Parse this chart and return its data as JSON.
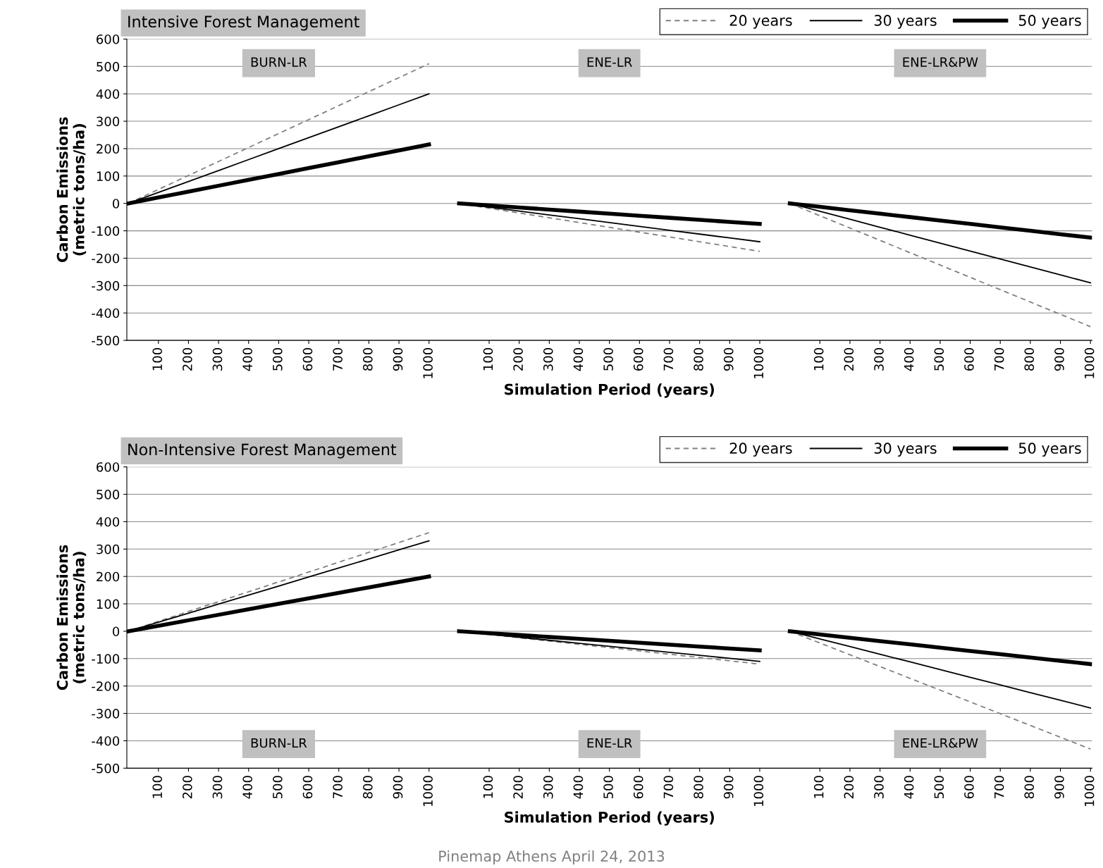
{
  "chart_data": [
    {
      "type": "line",
      "title": "Intensive Forest Management",
      "xlabel": "Simulation Period (years)",
      "ylabel": "Carbon Emissions\n(metric tons/ha)",
      "categories": [
        null,
        "100",
        "200",
        "300",
        "400",
        "500",
        "600",
        "700",
        "800",
        "900",
        "1000",
        null,
        "100",
        "200",
        "300",
        "400",
        "500",
        "600",
        "700",
        "800",
        "900",
        "1000",
        null,
        "100",
        "200",
        "300",
        "400",
        "500",
        "600",
        "700",
        "800",
        "900",
        "1000"
      ],
      "series": [
        {
          "name": "20 years",
          "color": "#808080",
          "line_style": "dashed",
          "values": [
            0,
            51,
            102,
            153,
            204,
            255,
            306,
            357,
            408,
            459,
            510,
            0,
            -17.5,
            -35,
            -52.5,
            -70,
            -87.5,
            -105,
            -122.5,
            -140,
            -157.5,
            -175,
            0,
            -45,
            -90,
            -135,
            -180,
            -225,
            -270,
            -315,
            -360,
            -405,
            -450
          ]
        },
        {
          "name": "30 years",
          "color": "#000000",
          "line_style": "solid",
          "values": [
            0,
            40,
            80,
            120,
            160,
            200,
            240,
            280,
            320,
            360,
            400,
            0,
            -14,
            -28,
            -42,
            -56,
            -70,
            -84,
            -98,
            -112,
            -126,
            -140,
            0,
            -29,
            -58,
            -87,
            -116,
            -145,
            -174,
            -203,
            -232,
            -261,
            -290
          ]
        },
        {
          "name": "50 years",
          "color": "#000000",
          "line_style": "solid",
          "values": [
            0,
            21.5,
            43,
            64.5,
            86,
            107.5,
            129,
            150.5,
            172,
            193.5,
            215,
            0,
            -7.5,
            -15,
            -22.5,
            -30,
            -37.5,
            -45,
            -52.5,
            -60,
            -67.5,
            -75,
            0,
            -12.5,
            -25,
            -37.5,
            -50,
            -62.5,
            -75,
            -87.5,
            -100,
            -112.5,
            -125
          ]
        }
      ],
      "ylim": [
        -500,
        600
      ],
      "yticks": [
        -500,
        -400,
        -300,
        -200,
        -100,
        0,
        100,
        200,
        300,
        400,
        500,
        600
      ],
      "grid": "y",
      "legend": "top right",
      "marker": "none",
      "annotations": [
        "BURN-LR",
        "ENE-LR",
        "ENE-LR&PW"
      ]
    },
    {
      "type": "line",
      "title": "Non-Intensive Forest Management",
      "xlabel": "Simulation Period (years)",
      "ylabel": "Carbon Emissions\n(metric tons/ha)",
      "categories": [
        null,
        "100",
        "200",
        "300",
        "400",
        "500",
        "600",
        "700",
        "800",
        "900",
        "1000",
        null,
        "100",
        "200",
        "300",
        "400",
        "500",
        "600",
        "700",
        "800",
        "900",
        "1000",
        null,
        "100",
        "200",
        "300",
        "400",
        "500",
        "600",
        "700",
        "800",
        "900",
        "1000"
      ],
      "series": [
        {
          "name": "20 years",
          "color": "#808080",
          "line_style": "dashed",
          "values": [
            0,
            36,
            72,
            108,
            144,
            180,
            216,
            252,
            288,
            324,
            360,
            0,
            -12,
            -24,
            -36,
            -48,
            -60,
            -72,
            -84,
            -96,
            -108,
            -120,
            0,
            -43,
            -86,
            -129,
            -172,
            -215,
            -258,
            -301,
            -344,
            -387,
            -430
          ]
        },
        {
          "name": "30 years",
          "color": "#000000",
          "line_style": "solid",
          "values": [
            0,
            33,
            66,
            99,
            132,
            165,
            198,
            231,
            264,
            297,
            330,
            0,
            -11,
            -22,
            -33,
            -44,
            -55,
            -66,
            -77,
            -88,
            -99,
            -110,
            0,
            -28,
            -56,
            -84,
            -112,
            -140,
            -168,
            -196,
            -224,
            -252,
            -280
          ]
        },
        {
          "name": "50 years",
          "color": "#000000",
          "line_style": "solid",
          "values": [
            0,
            20,
            40,
            60,
            80,
            100,
            120,
            140,
            160,
            180,
            200,
            0,
            -7,
            -14,
            -21,
            -28,
            -35,
            -42,
            -49,
            -56,
            -63,
            -70,
            0,
            -12,
            -24,
            -36,
            -48,
            -60,
            -72,
            -84,
            -96,
            -108,
            -120
          ]
        }
      ],
      "ylim": [
        -500,
        600
      ],
      "yticks": [
        -500,
        -400,
        -300,
        -200,
        -100,
        0,
        100,
        200,
        300,
        400,
        500,
        600
      ],
      "grid": "y",
      "legend": "top right",
      "marker": "none",
      "annotations": [
        "BURN-LR",
        "ENE-LR",
        "ENE-LR&PW",
        "Pinemap Athens April 24, 2013"
      ]
    }
  ]
}
